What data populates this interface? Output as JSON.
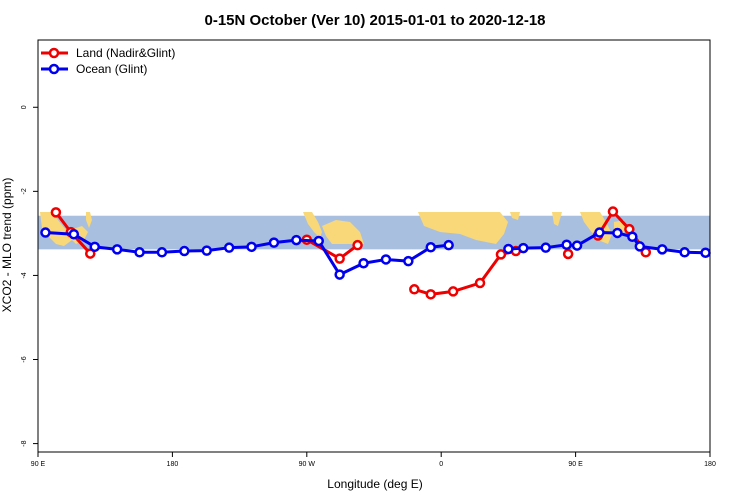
{
  "chart_data": {
    "type": "line",
    "title": "0-15N October (Ver 10)   2015-01-01 to 2020-12-18",
    "xlabel": "Longitude (deg E)",
    "ylabel": "XCO2 - MLO trend (ppm)",
    "xlim": [
      90,
      540
    ],
    "ylim": [
      -8.2,
      1.6
    ],
    "x_ticks": [
      {
        "value": 90,
        "label": "90 E"
      },
      {
        "value": 180,
        "label": "180"
      },
      {
        "value": 270,
        "label": "90 W"
      },
      {
        "value": 360,
        "label": "0"
      },
      {
        "value": 450,
        "label": "90 E"
      },
      {
        "value": 540,
        "label": "180"
      }
    ],
    "y_ticks": [
      {
        "value": 0,
        "label": "0"
      },
      {
        "value": -2,
        "label": "-2"
      },
      {
        "value": -4,
        "label": "-4"
      },
      {
        "value": -6,
        "label": "-6"
      },
      {
        "value": -8,
        "label": "-8"
      }
    ],
    "band": {
      "y_top": -2.58,
      "y_bottom": -3.38,
      "color": "#a9bfdf"
    },
    "land_color": "#f8d878",
    "legend_position": "top-left",
    "series": [
      {
        "name": "Land (Nadir&Glint)",
        "color": "#ee0000",
        "segments": [
          [
            [
              102,
              -2.5
            ],
            [
              112,
              -2.97
            ],
            [
              125,
              -3.48
            ]
          ],
          [
            [
              270,
              -3.15
            ],
            [
              292,
              -3.6
            ],
            [
              304,
              -3.28
            ]
          ],
          [
            [
              342,
              -4.33
            ],
            [
              353,
              -4.45
            ],
            [
              368,
              -4.38
            ],
            [
              386,
              -4.18
            ],
            [
              400,
              -3.5
            ],
            [
              410,
              -3.42
            ]
          ],
          [
            [
              445,
              -3.49
            ]
          ],
          [
            [
              465,
              -3.05
            ],
            [
              475,
              -2.48
            ],
            [
              486,
              -2.9
            ],
            [
              497,
              -3.45
            ]
          ]
        ]
      },
      {
        "name": "Ocean (Glint)",
        "color": "#0000ee",
        "segments": [
          [
            [
              95,
              -2.98
            ],
            [
              114,
              -3.02
            ],
            [
              128,
              -3.32
            ],
            [
              143,
              -3.38
            ],
            [
              158,
              -3.45
            ],
            [
              173,
              -3.45
            ],
            [
              188,
              -3.42
            ],
            [
              203,
              -3.41
            ],
            [
              218,
              -3.34
            ],
            [
              233,
              -3.32
            ],
            [
              248,
              -3.22
            ],
            [
              263,
              -3.16
            ],
            [
              278,
              -3.18
            ],
            [
              292,
              -3.98
            ],
            [
              308,
              -3.71
            ],
            [
              323,
              -3.62
            ],
            [
              338,
              -3.66
            ],
            [
              353,
              -3.33
            ],
            [
              365,
              -3.28
            ]
          ],
          [
            [
              405,
              -3.37
            ],
            [
              415,
              -3.35
            ],
            [
              430,
              -3.34
            ],
            [
              444,
              -3.27
            ],
            [
              451,
              -3.29
            ],
            [
              466,
              -2.98
            ],
            [
              478,
              -2.99
            ],
            [
              488,
              -3.08
            ],
            [
              493,
              -3.31
            ],
            [
              508,
              -3.38
            ],
            [
              523,
              -3.45
            ],
            [
              537,
              -3.46
            ]
          ]
        ]
      }
    ]
  }
}
